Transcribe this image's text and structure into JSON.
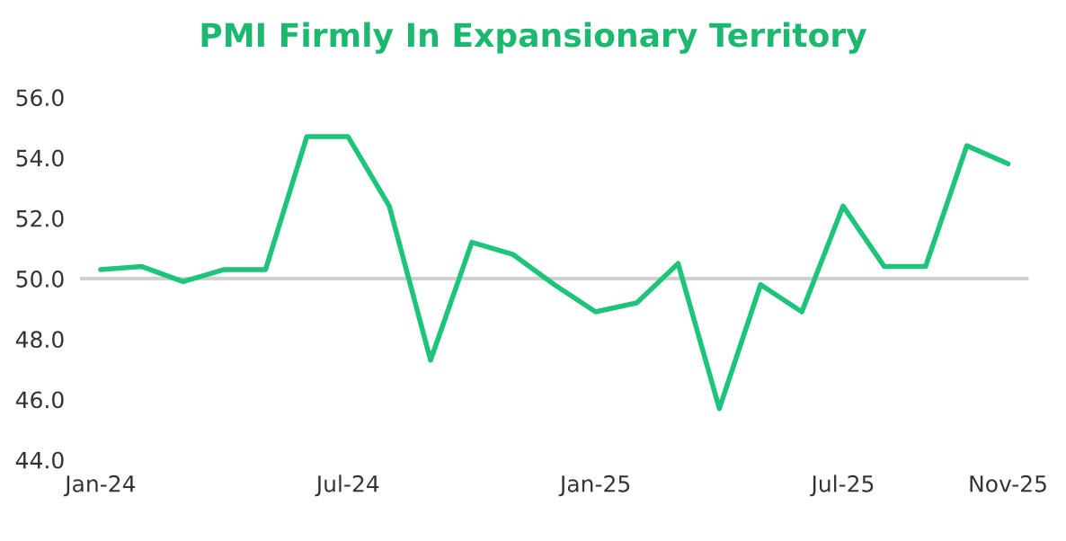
{
  "chart_data": {
    "type": "line",
    "title": "PMI Firmly In Expansionary Territory",
    "categories": [
      "Jan-24",
      null,
      null,
      null,
      null,
      null,
      "Jul-24",
      null,
      null,
      null,
      null,
      null,
      "Jan-25",
      null,
      null,
      null,
      null,
      null,
      "Jul-25",
      null,
      null,
      null,
      "Nov-25"
    ],
    "series": [
      {
        "color": "#1ec47a",
        "values": [
          50.3,
          50.4,
          49.9,
          50.3,
          50.3,
          54.7,
          54.7,
          52.4,
          47.3,
          51.2,
          50.8,
          49.8,
          48.9,
          49.2,
          50.5,
          45.7,
          49.8,
          48.9,
          52.4,
          50.4,
          50.4,
          54.4,
          53.8
        ]
      }
    ],
    "ylim": [
      44,
      56
    ],
    "yticks": [
      {
        "value": 44,
        "label": "44.0"
      },
      {
        "value": 46,
        "label": "46.0"
      },
      {
        "value": 48,
        "label": "48.0"
      },
      {
        "value": 50,
        "label": "50.0"
      },
      {
        "value": 52,
        "label": "52.0"
      },
      {
        "value": 54,
        "label": "54.0"
      },
      {
        "value": 56,
        "label": "56.0"
      }
    ],
    "ref_lines": [
      {
        "axis": "y",
        "value": 50,
        "color": "#d0d0d0"
      }
    ],
    "marker": "none",
    "line_style": "solid"
  }
}
